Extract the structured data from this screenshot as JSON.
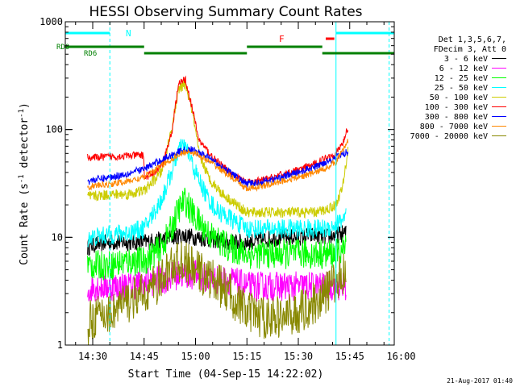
{
  "chart_data": {
    "type": "line",
    "title": "HESSI Observing Summary Count Rates",
    "xlabel": "Start Time (04-Sep-15 14:22:02)",
    "ylabel_main": "Count Rate (s",
    "ylabel_sup1": "-1",
    "ylabel_mid": " detector",
    "ylabel_sup2": "-1",
    "ylabel_end": ")",
    "yscale": "log",
    "ylim": [
      1,
      1000
    ],
    "xlim_min": [
      862,
      958
    ],
    "y_ticks": [
      {
        "v": 1,
        "label": "1"
      },
      {
        "v": 10,
        "label": "10"
      },
      {
        "v": 100,
        "label": "100"
      },
      {
        "v": 1000,
        "label": "1000"
      }
    ],
    "x_ticks": [
      {
        "v": 870,
        "label": "14:30"
      },
      {
        "v": 885,
        "label": "14:45"
      },
      {
        "v": 900,
        "label": "15:00"
      },
      {
        "v": 915,
        "label": "15:15"
      },
      {
        "v": 930,
        "label": "15:30"
      },
      {
        "v": 945,
        "label": "15:45"
      },
      {
        "v": 960,
        "label": "16:00"
      }
    ],
    "legend_header": [
      "Det 1,3,5,6,7,",
      "FDecim 3, Att 0"
    ],
    "legend": [
      {
        "label": "3 - 6 keV",
        "color": "#000000"
      },
      {
        "label": "6 - 12 keV",
        "color": "#ff00ff"
      },
      {
        "label": "12 - 25 keV",
        "color": "#00ff00"
      },
      {
        "label": "25 - 50 keV",
        "color": "#00ffff"
      },
      {
        "label": "50 - 100 keV",
        "color": "#cccc00"
      },
      {
        "label": "100 - 300 keV",
        "color": "#ff0000"
      },
      {
        "label": "300 - 800 keV",
        "color": "#0000ff"
      },
      {
        "label": "800 - 7000 keV",
        "color": "#ff8800"
      },
      {
        "label": "7000 - 20000 keV",
        "color": "#888800"
      }
    ],
    "flags": {
      "N_label": "N",
      "F_label": "F",
      "RD0_label": "RD0",
      "RD6_label": "RD6",
      "N_segments": [
        [
          862,
          875
        ],
        [
          941,
          958
        ]
      ],
      "F_segment": [
        938,
        940.5
      ],
      "RD0_segments": [
        [
          862,
          885
        ],
        [
          915,
          937
        ]
      ],
      "RD6_segments": [
        [
          885,
          915
        ],
        [
          937,
          958
        ]
      ],
      "N_color": "#00ffff",
      "F_color": "#ff0000",
      "RD_color": "#008000"
    },
    "vlines_solid": [
      862,
      941
    ],
    "vlines_dashed": [
      875,
      956.5
    ],
    "data_gap_before": 868.5,
    "series": [
      {
        "name": "3 - 6 keV",
        "color": "#000000",
        "x": [
          868.5,
          870,
          875,
          880,
          885,
          890,
          893,
          896,
          900,
          905,
          910,
          915,
          920,
          925,
          930,
          935,
          938,
          941,
          944
        ],
        "y": [
          8,
          8.5,
          9,
          9,
          9,
          9.5,
          10,
          10.5,
          10,
          9.5,
          9,
          9,
          9.5,
          10,
          10,
          10.5,
          10,
          10.5,
          11
        ],
        "noise": 0.08
      },
      {
        "name": "6 - 12 keV",
        "color": "#ff00ff",
        "x": [
          868.5,
          870,
          875,
          880,
          885,
          890,
          895,
          900,
          905,
          910,
          915,
          920,
          925,
          930,
          935,
          938,
          941,
          944
        ],
        "y": [
          3,
          3.5,
          3.5,
          3.5,
          3.8,
          4,
          4.5,
          4.5,
          4,
          4,
          3.5,
          3.5,
          3.5,
          3.5,
          3.5,
          3.5,
          3.5,
          3.5
        ],
        "noise": 0.14
      },
      {
        "name": "12 - 25 keV",
        "color": "#00ff00",
        "x": [
          868.5,
          870,
          875,
          880,
          885,
          890,
          893,
          895,
          897,
          900,
          905,
          910,
          915,
          920,
          925,
          930,
          935,
          938,
          941,
          944
        ],
        "y": [
          5.5,
          5.5,
          5.5,
          6,
          6,
          8,
          12,
          18,
          22,
          15,
          10,
          8,
          7,
          7,
          7,
          7,
          7,
          7,
          7,
          8
        ],
        "noise": 0.14
      },
      {
        "name": "25 - 50 keV",
        "color": "#00ffff",
        "x": [
          868.5,
          870,
          875,
          880,
          885,
          890,
          893,
          895,
          897,
          900,
          903,
          906,
          910,
          915,
          920,
          925,
          930,
          935,
          938,
          941,
          944
        ],
        "y": [
          10,
          10,
          10.5,
          11,
          12,
          22,
          40,
          65,
          70,
          40,
          25,
          18,
          15,
          12,
          12,
          12,
          12,
          12,
          12,
          13,
          16
        ],
        "noise": 0.09
      },
      {
        "name": "50 - 100 keV",
        "color": "#cccc00",
        "x": [
          868.5,
          870,
          875,
          880,
          885,
          890,
          893,
          895,
          897,
          899,
          901,
          904,
          908,
          912,
          915,
          920,
          925,
          930,
          935,
          938,
          941,
          943,
          944.5
        ],
        "y": [
          24,
          24,
          25,
          25,
          27,
          40,
          100,
          230,
          270,
          150,
          60,
          35,
          25,
          20,
          17,
          17,
          17,
          17,
          17,
          18,
          20,
          30,
          65
        ],
        "noise": 0.05
      },
      {
        "name": "100 - 300 keV",
        "color": "#ff0000",
        "x": [
          868.5,
          870,
          875,
          880,
          884.9,
          885.1,
          890,
          893,
          895,
          897,
          899,
          901,
          905,
          910,
          915,
          920,
          925,
          930,
          935,
          938,
          941,
          943,
          944.5
        ],
        "y": [
          55,
          55,
          56,
          57,
          58,
          35,
          45,
          90,
          260,
          295,
          160,
          80,
          55,
          40,
          32,
          34,
          38,
          42,
          48,
          55,
          60,
          75,
          105
        ],
        "noise": 0.035
      },
      {
        "name": "300 - 800 keV",
        "color": "#0000ff",
        "x": [
          868.5,
          870,
          875,
          880,
          885,
          890,
          895,
          898,
          900,
          905,
          910,
          915,
          920,
          925,
          930,
          935,
          938,
          941,
          944.5
        ],
        "y": [
          33,
          34,
          36,
          39,
          43,
          52,
          62,
          66,
          63,
          52,
          40,
          31,
          33,
          36,
          40,
          45,
          50,
          55,
          62
        ],
        "noise": 0.035
      },
      {
        "name": "800 - 7000 keV",
        "color": "#ff8800",
        "x": [
          868.5,
          870,
          875,
          880,
          885,
          890,
          895,
          898,
          900,
          905,
          910,
          915,
          920,
          925,
          930,
          935,
          938,
          941,
          944.5
        ],
        "y": [
          29,
          30,
          31,
          33,
          36,
          46,
          58,
          63,
          60,
          48,
          37,
          28,
          30,
          33,
          36,
          40,
          44,
          50,
          78
        ],
        "noise": 0.03
      },
      {
        "name": "7000 - 20000 keV",
        "color": "#888800",
        "x": [
          868.5,
          870,
          875,
          880,
          885,
          890,
          893,
          896,
          900,
          905,
          910,
          915,
          920,
          925,
          930,
          935,
          938,
          941,
          944
        ],
        "y": [
          1.5,
          1.8,
          2,
          2.5,
          3,
          4,
          5.5,
          6,
          5,
          4,
          3,
          2,
          1.8,
          1.8,
          2,
          2.5,
          3,
          4,
          5
        ],
        "noise": 0.2
      }
    ],
    "grid": false,
    "legend_position": "right"
  },
  "footer_timestamp": "21-Aug-2017 01:40"
}
